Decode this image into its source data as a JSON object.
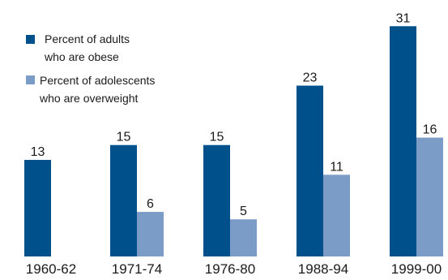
{
  "chart_data": {
    "type": "bar",
    "title": "",
    "xlabel": "",
    "ylabel": "",
    "ylim": [
      0,
      33
    ],
    "grid": false,
    "legend_position": "top-left",
    "categories": [
      "1960-62",
      "1971-74",
      "1976-80",
      "1988-94",
      "1999-00"
    ],
    "series": [
      {
        "name_lines": [
          "Percent of adults",
          "who are obese"
        ],
        "values": [
          13,
          15,
          15,
          23,
          31
        ],
        "labels": [
          "13",
          "15",
          "15",
          "23",
          "31"
        ],
        "color": "#00508c"
      },
      {
        "name_lines": [
          "Percent of adolescents",
          "who are overweight"
        ],
        "values": [
          null,
          6,
          5,
          11,
          16
        ],
        "labels": [
          "",
          "6",
          "5",
          "11",
          "16"
        ],
        "color": "#7b9cc6"
      }
    ]
  }
}
